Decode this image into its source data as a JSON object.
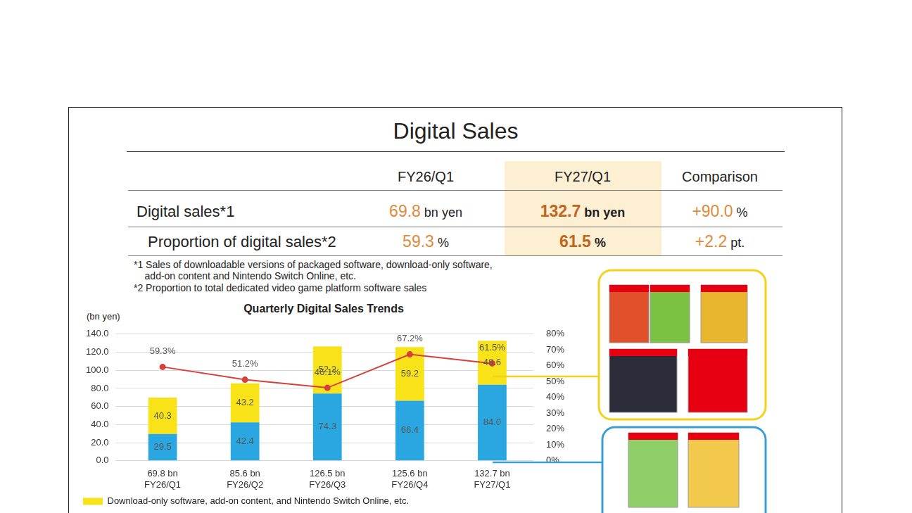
{
  "title": "Digital Sales",
  "table": {
    "header": [
      "FY26/Q1",
      "FY27/Q1",
      "Comparison"
    ],
    "rows": [
      {
        "label": "Digital sales*1",
        "cells": [
          [
            "69.8",
            "bn yen"
          ],
          [
            "132.7",
            "bn yen"
          ],
          [
            "+90.0",
            "%"
          ]
        ]
      },
      {
        "label": "Proportion of digital sales*2",
        "cells": [
          [
            "59.3",
            "%"
          ],
          [
            "61.5",
            "%"
          ],
          [
            "+2.2",
            "pt."
          ]
        ]
      }
    ]
  },
  "notes": [
    "*1 Sales of downloadable versions of packaged software, download-only software,\n    add-on content and Nintendo Switch Online, etc.",
    "*2 Proportion to total dedicated video game platform software sales"
  ],
  "chart_data": {
    "type": "bar",
    "title": "Quarterly Digital Sales Trends",
    "y_label": "(bn yen)",
    "categories": [
      [
        "69.8 bn",
        "FY26/Q1"
      ],
      [
        "85.6 bn",
        "FY26/Q2"
      ],
      [
        "126.5 bn",
        "FY26/Q3"
      ],
      [
        "125.6 bn",
        "FY26/Q4"
      ],
      [
        "132.7 bn",
        "FY27/Q1"
      ]
    ],
    "stacked": true,
    "grid": true,
    "data_labels": true,
    "legend": "bottom",
    "ylim": [
      0,
      140
    ],
    "yticks": [
      {
        "value": 0,
        "label": "0.0"
      },
      {
        "value": 20,
        "label": "20.0"
      },
      {
        "value": 40,
        "label": "40.0"
      },
      {
        "value": 60,
        "label": "60.0"
      },
      {
        "value": 80,
        "label": "80.0"
      },
      {
        "value": 100,
        "label": "100.0"
      },
      {
        "value": 120,
        "label": "120.0"
      },
      {
        "value": 140,
        "label": "140.0"
      }
    ],
    "y2lim": [
      0,
      80
    ],
    "y2ticks": [
      {
        "value": 0,
        "label": "0%"
      },
      {
        "value": 10,
        "label": "10%"
      },
      {
        "value": 20,
        "label": "20%"
      },
      {
        "value": 30,
        "label": "30%"
      },
      {
        "value": 40,
        "label": "40%"
      },
      {
        "value": 50,
        "label": "50%"
      },
      {
        "value": 60,
        "label": "60%"
      },
      {
        "value": 70,
        "label": "70%"
      },
      {
        "value": 80,
        "label": "80%"
      }
    ],
    "series": [
      {
        "type": "bar",
        "color": "#2aa7e0",
        "values": [
          29.5,
          42.4,
          74.3,
          66.4,
          84.0
        ],
        "value_labels": [
          "29.5",
          "42.4",
          "74.3",
          "66.4",
          "84.0"
        ]
      },
      {
        "type": "bar",
        "name": "Download-only software, add-on content, and Nintendo Switch Online, etc.",
        "color": "#f7e318",
        "values": [
          40.3,
          43.2,
          52.2,
          59.2,
          48.6
        ],
        "value_labels": [
          "40.3",
          "43.2",
          "52.2",
          "59.2",
          "48.6"
        ]
      },
      {
        "type": "line",
        "axis": "y2",
        "color": "#d7403a",
        "marker": "circle",
        "values": [
          59.3,
          51.2,
          46.1,
          67.2,
          61.5
        ],
        "value_labels": [
          "59.3%",
          "51.2%",
          "46.1%",
          "67.2%",
          "61.5%"
        ]
      }
    ]
  }
}
